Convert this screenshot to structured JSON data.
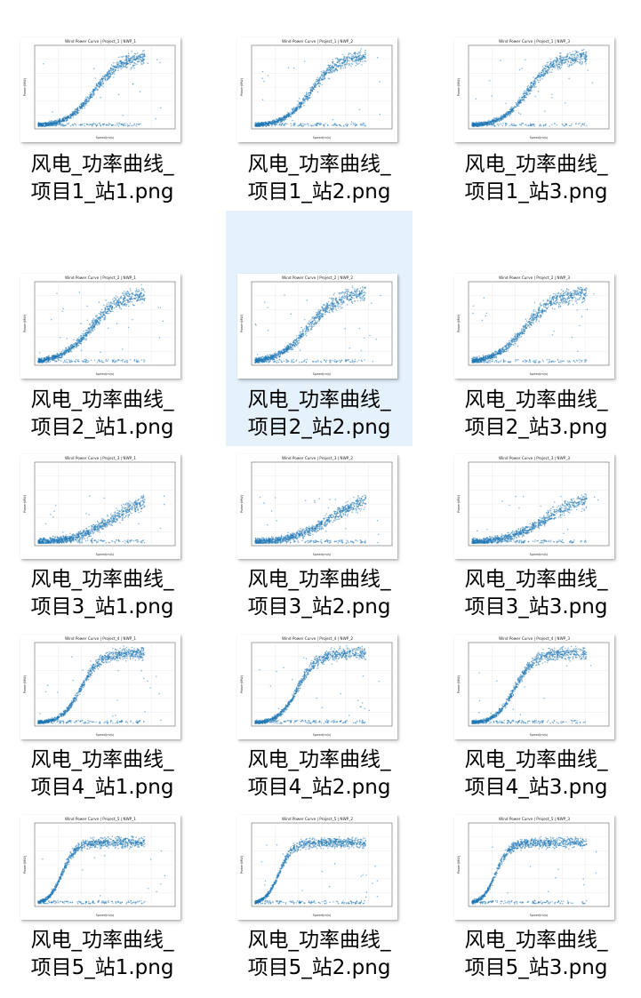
{
  "view": "large-icons",
  "colors": {
    "point": "#1f77b4",
    "selection": "#e5f1fb"
  },
  "files": [
    {
      "name_line1": "风电_功率曲线_",
      "name_line2": "项目1_站1.png",
      "plot_title": "Wind Power Curve | Project_1 | NWP_1",
      "selected": false
    },
    {
      "name_line1": "风电_功率曲线_",
      "name_line2": "项目1_站2.png",
      "plot_title": "Wind Power Curve | Project_1 | NWP_2",
      "selected": false
    },
    {
      "name_line1": "风电_功率曲线_",
      "name_line2": "项目1_站3.png",
      "plot_title": "Wind Power Curve | Project_1 | NWP_3",
      "selected": false
    },
    {
      "name_line1": "风电_功率曲线_",
      "name_line2": "项目2_站1.png",
      "plot_title": "Wind Power Curve | Project_2 | NWP_1",
      "selected": false
    },
    {
      "name_line1": "风电_功率曲线_",
      "name_line2": "项目2_站2.png",
      "plot_title": "Wind Power Curve | Project_2 | NWP_2",
      "selected": true
    },
    {
      "name_line1": "风电_功率曲线_",
      "name_line2": "项目2_站3.png",
      "plot_title": "Wind Power Curve | Project_2 | NWP_3",
      "selected": false
    },
    {
      "name_line1": "风电_功率曲线_",
      "name_line2": "项目3_站1.png",
      "plot_title": "Wind Power Curve | Project_3 | NWP_1",
      "selected": false
    },
    {
      "name_line1": "风电_功率曲线_",
      "name_line2": "项目3_站2.png",
      "plot_title": "Wind Power Curve | Project_3 | NWP_2",
      "selected": false
    },
    {
      "name_line1": "风电_功率曲线_",
      "name_line2": "项目3_站3.png",
      "plot_title": "Wind Power Curve | Project_3 | NWP_3",
      "selected": false
    },
    {
      "name_line1": "风电_功率曲线_",
      "name_line2": "项目4_站1.png",
      "plot_title": "Wind Power Curve | Project_4 | NWP_1",
      "selected": false
    },
    {
      "name_line1": "风电_功率曲线_",
      "name_line2": "项目4_站2.png",
      "plot_title": "Wind Power Curve | Project_4 | NWP_2",
      "selected": false
    },
    {
      "name_line1": "风电_功率曲线_",
      "name_line2": "项目4_站3.png",
      "plot_title": "Wind Power Curve | Project_4 | NWP_3",
      "selected": false
    },
    {
      "name_line1": "风电_功率曲线_",
      "name_line2": "项目5_站1.png",
      "plot_title": "Wind Power Curve | Project_5 | NWP_1",
      "selected": false
    },
    {
      "name_line1": "风电_功率曲线_",
      "name_line2": "项目5_站2.png",
      "plot_title": "Wind Power Curve | Project_5 | NWP_2",
      "selected": false
    },
    {
      "name_line1": "风电_功率曲线_",
      "name_line2": "项目5_站3.png",
      "plot_title": "Wind Power Curve | Project_5 | NWP_3",
      "selected": false
    }
  ]
}
